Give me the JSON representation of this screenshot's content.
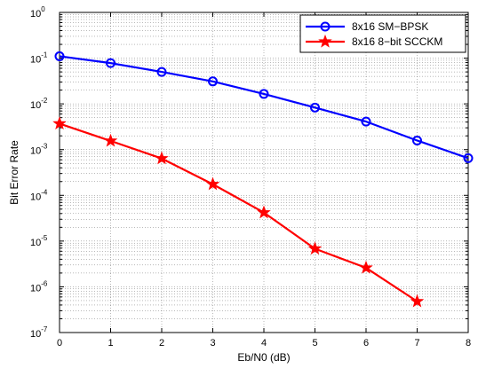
{
  "chart_data": {
    "type": "line",
    "xlabel": "Eb/N0 (dB)",
    "ylabel": "Bit Error Rate",
    "xlim": [
      0,
      8
    ],
    "ylim": [
      1e-07,
      1
    ],
    "yscale": "log",
    "grid": true,
    "legend_position": "top-right",
    "x_ticks": [
      "0",
      "1",
      "2",
      "3",
      "4",
      "5",
      "6",
      "7",
      "8"
    ],
    "y_ticks": [
      {
        "base": "10",
        "exp": "0"
      },
      {
        "base": "10",
        "exp": "-1"
      },
      {
        "base": "10",
        "exp": "-2"
      },
      {
        "base": "10",
        "exp": "-3"
      },
      {
        "base": "10",
        "exp": "-4"
      },
      {
        "base": "10",
        "exp": "-5"
      },
      {
        "base": "10",
        "exp": "-6"
      },
      {
        "base": "10",
        "exp": "-7"
      }
    ],
    "series": [
      {
        "name": "8x16 SM−BPSK",
        "color": "#0000ff",
        "marker": "circle",
        "x": [
          0,
          1,
          2,
          3,
          4,
          5,
          6,
          7,
          8
        ],
        "y": [
          0.11,
          0.078,
          0.05,
          0.031,
          0.0165,
          0.0083,
          0.0041,
          0.00158,
          0.00065
        ]
      },
      {
        "name": "8x16 8−bit SCCKM",
        "color": "#ff0000",
        "marker": "star",
        "x": [
          0,
          1,
          2,
          3,
          4,
          5,
          6,
          7
        ],
        "y": [
          0.0037,
          0.00155,
          0.00064,
          0.000175,
          4.2e-05,
          6.8e-06,
          2.6e-06,
          4.8e-07
        ]
      }
    ]
  }
}
